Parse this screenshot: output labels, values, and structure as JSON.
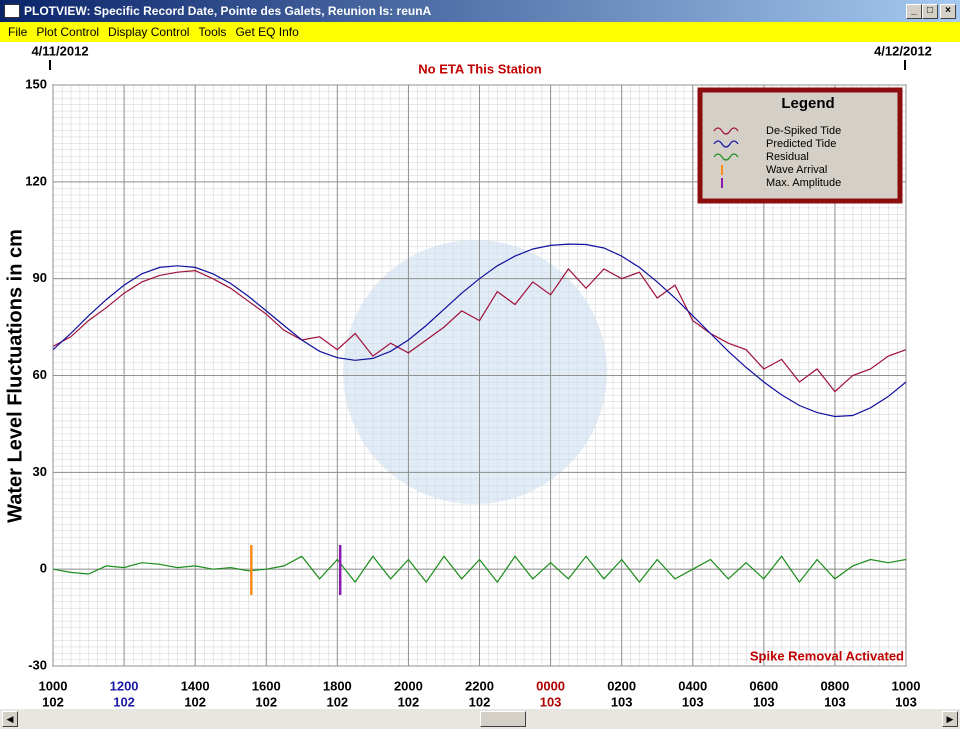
{
  "window": {
    "title": "PLOTVIEW: Specific Record Date, Pointe des Galets, Reunion Is: reunA",
    "menu": [
      "File",
      "Plot Control",
      "Display Control",
      "Tools",
      "Get EQ Info"
    ]
  },
  "chart_data": {
    "type": "line",
    "title": "No ETA This Station",
    "ylabel": "Water Level Fluctuations in cm",
    "date_labels": [
      "4/11/2012",
      "4/12/2012"
    ],
    "note": "Spike Removal Activated",
    "legend_title": "Legend",
    "legend": "top-right",
    "grid": true,
    "xlim": [
      0,
      24
    ],
    "xticks": [
      {
        "value": 0,
        "label": "1000"
      },
      {
        "value": 2,
        "label": "1200"
      },
      {
        "value": 4,
        "label": "1400"
      },
      {
        "value": 6,
        "label": "1600"
      },
      {
        "value": 8,
        "label": "1800"
      },
      {
        "value": 10,
        "label": "2000"
      },
      {
        "value": 12,
        "label": "2200"
      },
      {
        "value": 14,
        "label": "0000"
      },
      {
        "value": 16,
        "label": "0200"
      },
      {
        "value": 18,
        "label": "0400"
      },
      {
        "value": 20,
        "label": "0600"
      },
      {
        "value": 22,
        "label": "0800"
      },
      {
        "value": 24,
        "label": "1000"
      }
    ],
    "xtick_days": [
      "102",
      "102",
      "102",
      "102",
      "102",
      "102",
      "102",
      "103",
      "103",
      "103",
      "103",
      "103",
      "103"
    ],
    "xtick_colors": [
      "#000",
      "#1a1aa6",
      "#000",
      "#000",
      "#000",
      "#000",
      "#000",
      "#b00000",
      "#000",
      "#000",
      "#000",
      "#000",
      "#000"
    ],
    "ylim": [
      -30,
      150
    ],
    "yticks": [
      -30,
      0,
      30,
      60,
      90,
      120,
      150
    ],
    "x": [
      0,
      0.5,
      1,
      1.5,
      2,
      2.5,
      3,
      3.5,
      4,
      4.5,
      5,
      5.5,
      6,
      6.5,
      7,
      7.5,
      8,
      8.5,
      9,
      9.5,
      10,
      10.5,
      11,
      11.5,
      12,
      12.5,
      13,
      13.5,
      14,
      14.5,
      15,
      15.5,
      16,
      16.5,
      17,
      17.5,
      18,
      18.5,
      19,
      19.5,
      20,
      20.5,
      21,
      21.5,
      22,
      22.5,
      23,
      23.5,
      24
    ],
    "series": [
      {
        "name": "De-Spiked Tide",
        "color": "#a0103a",
        "values": [
          69,
          72,
          77,
          81,
          85.5,
          89,
          91,
          92,
          92.5,
          90,
          87,
          83,
          79,
          74,
          71,
          72,
          68,
          73,
          66,
          70,
          67,
          71,
          75,
          80,
          77,
          86,
          82,
          89,
          85,
          93,
          87,
          93,
          90,
          92,
          84,
          88,
          77,
          73,
          70,
          68,
          62,
          65,
          58,
          62,
          55,
          60,
          62,
          66,
          68
        ]
      },
      {
        "name": "Predicted Tide",
        "color": "#1010a0",
        "values": [
          68,
          73,
          78.5,
          83.5,
          88,
          91.5,
          93.5,
          94,
          93.5,
          91.5,
          88.5,
          84.5,
          80,
          75.5,
          71,
          67.5,
          65.5,
          64.7,
          65.3,
          67.5,
          71,
          75.5,
          80.5,
          85.5,
          90,
          94,
          97,
          99.2,
          100.3,
          100.7,
          100.6,
          99.5,
          97,
          93.5,
          89,
          84,
          78.5,
          73,
          67.5,
          62.5,
          58,
          54,
          50.7,
          48.5,
          47.3,
          47.6,
          50,
          53.5,
          58
        ]
      },
      {
        "name": "Residual",
        "color": "#1a8c1a",
        "values": [
          0,
          -1,
          -1.5,
          1,
          0.5,
          2,
          1.5,
          0.5,
          1,
          0,
          0.5,
          -0.5,
          0,
          1,
          4,
          -3,
          3,
          -4,
          4,
          -3,
          3,
          -4,
          4,
          -3,
          3,
          -4,
          4,
          -3,
          2,
          -3,
          4,
          -3,
          3,
          -4,
          3,
          -3,
          0,
          3,
          -3,
          2,
          -3,
          4,
          -4,
          3,
          -3,
          1,
          3,
          2,
          3
        ]
      }
    ],
    "markers": [
      {
        "name": "Wave Arrival",
        "color": "#ff8c1a",
        "x": 5.58,
        "values": [
          -8,
          7.5
        ]
      },
      {
        "name": "Max. Amplitude",
        "color": "#8a1ab0",
        "x": 8.08,
        "values": [
          -8,
          7.5
        ]
      }
    ]
  }
}
